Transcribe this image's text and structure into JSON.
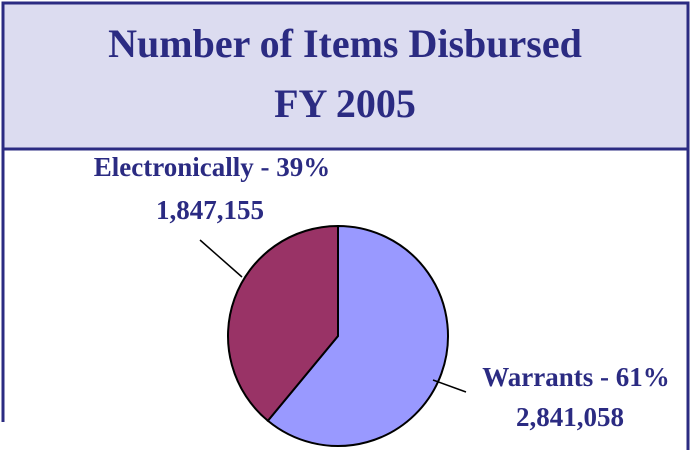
{
  "chart_data": {
    "type": "pie",
    "title": [
      "Number of Items Disbursed",
      "FY 2005"
    ],
    "labels": [
      "Electronically - 39%",
      "Warrants - 61%"
    ],
    "values": [
      39,
      61
    ],
    "counts": [
      1847155,
      2841058
    ],
    "count_labels": [
      "1,847,155",
      "2,841,058"
    ],
    "colors": [
      "#993366",
      "#9999ff"
    ]
  }
}
